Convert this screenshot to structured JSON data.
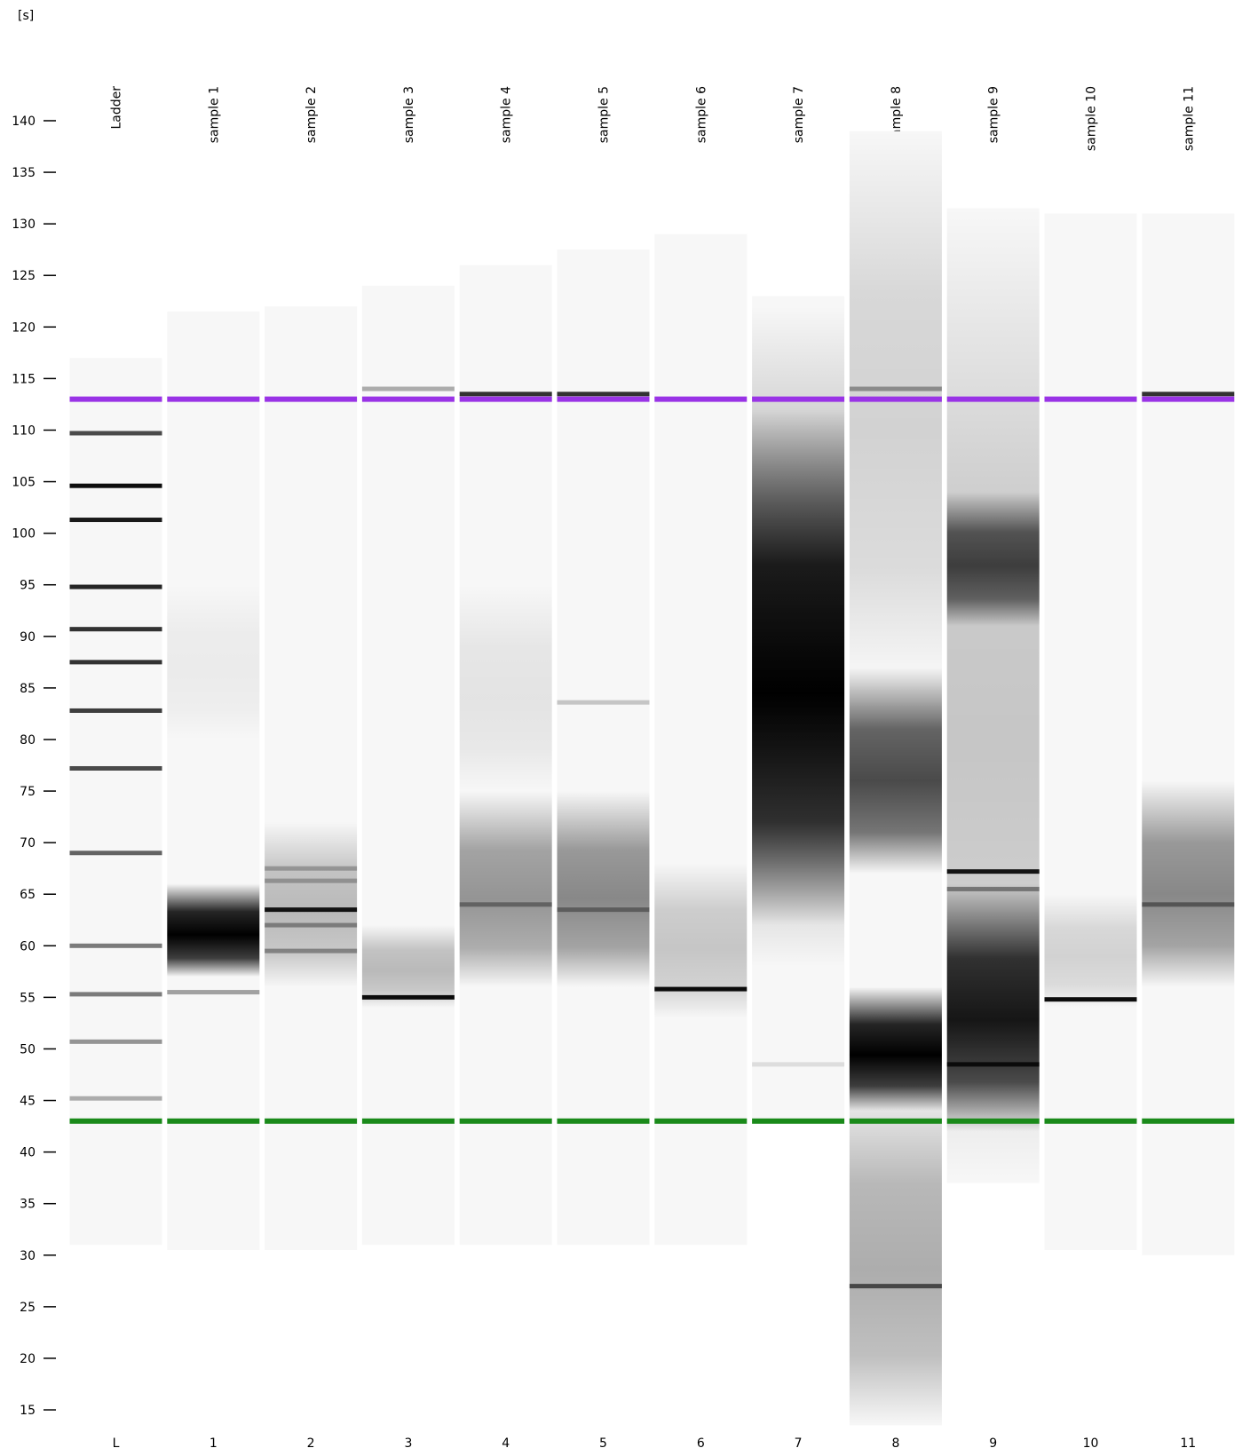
{
  "chart_data": {
    "type": "gel",
    "y_unit": "[s]",
    "ylim": [
      11,
      151
    ],
    "yticks": [
      15,
      20,
      25,
      30,
      35,
      40,
      45,
      50,
      55,
      60,
      65,
      70,
      75,
      80,
      85,
      90,
      95,
      100,
      105,
      110,
      115,
      120,
      125,
      130,
      135,
      140
    ],
    "upper_marker": {
      "position": 113,
      "color": "#9933e6"
    },
    "lower_marker": {
      "position": 43,
      "color": "#1a8a1a"
    },
    "lanes": [
      {
        "name": "Ladder",
        "label": "L",
        "range": [
          31,
          117
        ],
        "bands": [
          {
            "position": 109.7,
            "intensity": 0.7
          },
          {
            "position": 104.6,
            "intensity": 0.95
          },
          {
            "position": 101.3,
            "intensity": 0.9
          },
          {
            "position": 94.8,
            "intensity": 0.85
          },
          {
            "position": 90.7,
            "intensity": 0.8
          },
          {
            "position": 87.5,
            "intensity": 0.8
          },
          {
            "position": 82.8,
            "intensity": 0.75
          },
          {
            "position": 77.2,
            "intensity": 0.7
          },
          {
            "position": 69.0,
            "intensity": 0.6
          },
          {
            "position": 60.0,
            "intensity": 0.5
          },
          {
            "position": 55.3,
            "intensity": 0.5
          },
          {
            "position": 50.7,
            "intensity": 0.4
          },
          {
            "position": 45.2,
            "intensity": 0.3
          }
        ],
        "smears": []
      },
      {
        "name": "sample 1",
        "label": "1",
        "range": [
          30.5,
          121.5
        ],
        "bands": [
          {
            "position": 55.5,
            "intensity": 0.35
          }
        ],
        "smears": [
          {
            "range": [
              57,
              66
            ],
            "intensity": 1
          },
          {
            "range": [
              80,
              95
            ],
            "intensity": 0.05
          }
        ]
      },
      {
        "name": "sample 2",
        "label": "2",
        "range": [
          30.5,
          122
        ],
        "bands": [
          {
            "position": 63.5,
            "intensity": 0.9
          },
          {
            "position": 67.5,
            "intensity": 0.25
          },
          {
            "position": 66.3,
            "intensity": 0.25
          },
          {
            "position": 62,
            "intensity": 0.35
          },
          {
            "position": 59.5,
            "intensity": 0.35
          }
        ],
        "smears": [
          {
            "range": [
              56,
              72
            ],
            "intensity": 0.25
          }
        ]
      },
      {
        "name": "sample 3",
        "label": "3",
        "range": [
          31,
          124
        ],
        "bands": [
          {
            "position": 55,
            "intensity": 0.95
          },
          {
            "position": 114,
            "intensity": 0.3
          }
        ],
        "smears": [
          {
            "range": [
              54,
              62
            ],
            "intensity": 0.25
          }
        ]
      },
      {
        "name": "sample 4",
        "label": "4",
        "range": [
          31,
          126
        ],
        "bands": [
          {
            "position": 64,
            "intensity": 0.35
          },
          {
            "position": 113.5,
            "intensity": 0.8
          }
        ],
        "smears": [
          {
            "range": [
              56,
              75
            ],
            "intensity": 0.4
          },
          {
            "range": [
              75,
              95
            ],
            "intensity": 0.08
          }
        ]
      },
      {
        "name": "sample 5",
        "label": "5",
        "range": [
          31,
          127.5
        ],
        "bands": [
          {
            "position": 63.5,
            "intensity": 0.35
          },
          {
            "position": 113.5,
            "intensity": 0.8
          },
          {
            "position": 83.6,
            "intensity": 0.2
          }
        ],
        "smears": [
          {
            "range": [
              56,
              75
            ],
            "intensity": 0.45
          }
        ]
      },
      {
        "name": "sample 6",
        "label": "6",
        "range": [
          31,
          129
        ],
        "bands": [
          {
            "position": 55.8,
            "intensity": 0.95
          }
        ],
        "smears": [
          {
            "range": [
              53,
              68
            ],
            "intensity": 0.2
          }
        ]
      },
      {
        "name": "sample 7",
        "label": "7",
        "range": [
          43,
          123
        ],
        "bands": [
          {
            "position": 48.5,
            "intensity": 0.1
          }
        ],
        "smears": [
          {
            "range": [
              62,
              112
            ],
            "intensity": 1
          },
          {
            "range": [
              58,
              122
            ],
            "intensity": 0.3
          }
        ]
      },
      {
        "name": "sample 8",
        "label": "8",
        "range": [
          13.5,
          139
        ],
        "bands": [
          {
            "position": 27,
            "intensity": 0.6
          },
          {
            "position": 114,
            "intensity": 0.35
          }
        ],
        "smears": [
          {
            "range": [
              44,
              56
            ],
            "intensity": 1
          },
          {
            "range": [
              67,
              87
            ],
            "intensity": 0.7
          },
          {
            "range": [
              13.5,
              47
            ],
            "intensity": 0.3
          },
          {
            "range": [
              86,
              139
            ],
            "intensity": 0.15
          }
        ]
      },
      {
        "name": "sample 9",
        "label": "9",
        "range": [
          37,
          131.5
        ],
        "bands": [
          {
            "position": 67.2,
            "intensity": 0.9
          },
          {
            "position": 48.5,
            "intensity": 0.8
          },
          {
            "position": 65.5,
            "intensity": 0.4
          }
        ],
        "smears": [
          {
            "range": [
              42,
              66
            ],
            "intensity": 0.9
          },
          {
            "range": [
              91,
              104
            ],
            "intensity": 0.7
          },
          {
            "range": [
              37,
              131.5
            ],
            "intensity": 0.2
          }
        ]
      },
      {
        "name": "sample 10",
        "label": "10",
        "range": [
          30.5,
          131
        ],
        "bands": [
          {
            "position": 54.8,
            "intensity": 0.95
          }
        ],
        "smears": [
          {
            "range": [
              54,
              65
            ],
            "intensity": 0.15
          }
        ]
      },
      {
        "name": "sample 11",
        "label": "11",
        "range": [
          30,
          131
        ],
        "bands": [
          {
            "position": 64,
            "intensity": 0.4
          },
          {
            "position": 113.5,
            "intensity": 0.8
          }
        ],
        "smears": [
          {
            "range": [
              56,
              76
            ],
            "intensity": 0.45
          }
        ]
      }
    ]
  }
}
